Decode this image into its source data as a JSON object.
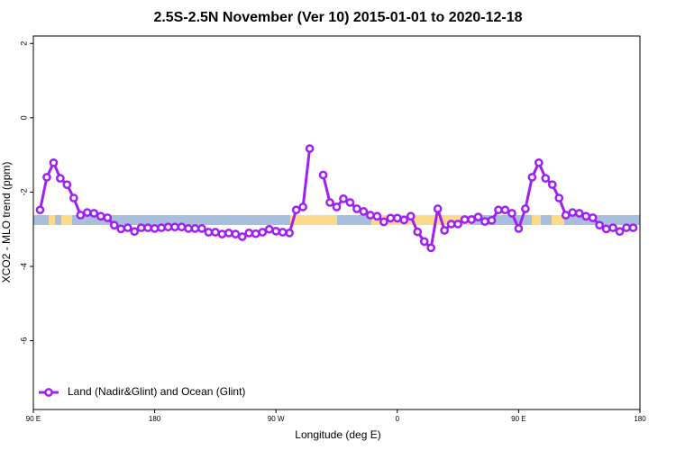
{
  "chart_data": {
    "type": "line",
    "title": "2.5S-2.5N November (Ver 10)   2015-01-01 to 2020-12-18",
    "xlabel": "Longitude (deg E)",
    "ylabel": "XCO2 - MLO trend (ppm)",
    "x": [
      95,
      100,
      105,
      110,
      115,
      120,
      125,
      130,
      135,
      140,
      145,
      150,
      155,
      160,
      165,
      170,
      175,
      180,
      185,
      190,
      195,
      200,
      205,
      210,
      215,
      220,
      225,
      230,
      235,
      240,
      245,
      250,
      255,
      260,
      265,
      270,
      275,
      280,
      285,
      290,
      295,
      300,
      305,
      310,
      315,
      320,
      325,
      330,
      335,
      340,
      345,
      350,
      355,
      360,
      365,
      370,
      375,
      380,
      385,
      390,
      395,
      400,
      405,
      410,
      415,
      420,
      425,
      430,
      435,
      440,
      445,
      450,
      455,
      460,
      465,
      470,
      475,
      480,
      485,
      490,
      495,
      500,
      505,
      510,
      515,
      520,
      525,
      530,
      535
    ],
    "series": [
      {
        "name": "Land (Nadir&Glint) and Ocean (Glint)",
        "color": "#a020f0",
        "values": [
          -2.48,
          -1.6,
          -1.21,
          -1.63,
          -1.8,
          -2.16,
          -2.62,
          -2.55,
          -2.57,
          -2.65,
          -2.69,
          -2.89,
          -2.99,
          -2.96,
          -3.06,
          -2.96,
          -2.96,
          -2.98,
          -2.96,
          -2.94,
          -2.94,
          -2.94,
          -2.98,
          -2.98,
          -2.98,
          -3.08,
          -3.08,
          -3.13,
          -3.1,
          -3.13,
          -3.2,
          -3.1,
          -3.12,
          -3.08,
          -3.0,
          -3.05,
          -3.08,
          -3.1,
          -2.48,
          -2.4,
          -0.83,
          null,
          -1.54,
          -2.28,
          -2.4,
          -2.18,
          -2.28,
          -2.45,
          -2.52,
          -2.62,
          -2.65,
          -2.8,
          -2.7,
          -2.7,
          -2.75,
          -2.65,
          -3.07,
          -3.33,
          -3.5,
          -2.45,
          -3.03,
          -2.86,
          -2.86,
          -2.74,
          -2.74,
          -2.67,
          -2.79,
          -2.76,
          -2.48,
          -2.48,
          -2.57,
          -2.98,
          -2.45,
          -1.6,
          -1.21,
          -1.63,
          -1.8,
          -2.16,
          -2.62,
          -2.55,
          -2.57,
          -2.65,
          -2.69,
          -2.89,
          -2.99,
          -2.96,
          -3.06,
          -2.96,
          -2.96
        ]
      }
    ],
    "xlim": [
      90,
      540
    ],
    "xticks": [
      {
        "value": 90,
        "label": "90 E"
      },
      {
        "value": 180,
        "label": "180"
      },
      {
        "value": 270,
        "label": "90 W"
      },
      {
        "value": 360,
        "label": "0"
      },
      {
        "value": 450,
        "label": "90 E"
      },
      {
        "value": 540,
        "label": "180"
      }
    ],
    "ylim": [
      -7.85,
      2.2
    ],
    "yticks": [
      2,
      0,
      -2,
      -4,
      -6
    ],
    "legend": "bottom-left"
  }
}
